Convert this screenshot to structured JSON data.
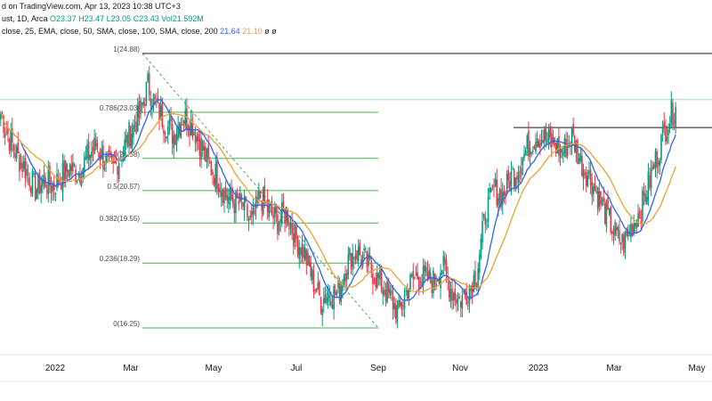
{
  "header": {
    "line1_prefix": "d on TradingView.com, Apr 13, 2023 10:38 UTC+3",
    "line2_symbol": "ust, 1D, Arca",
    "open": "O23.37",
    "high": "H23.47",
    "low": "L23.05",
    "close": "C23.43",
    "volume": "Vol21.592M",
    "line3_prefix": "close, 25, EMA, close, 50, SMA, close, 100, SMA, close, 200",
    "ma1_value": "21.64",
    "ma2_value": "21.10",
    "trailing": "ø ø"
  },
  "colors": {
    "up": "#089981",
    "down": "#f23645",
    "ma_fast": "#2962ff",
    "ma_slow": "#f0a030",
    "fib": "#4caf50",
    "trend": "#4caf50"
  },
  "chart_data": {
    "type": "candlestick",
    "x_labels": [
      "2022",
      "Mar",
      "May",
      "Jul",
      "Sep",
      "Nov",
      "2023",
      "Mar",
      "May"
    ],
    "fib_levels": [
      {
        "label": "1(24.88)",
        "value": 24.88
      },
      {
        "label": "0.786(23.03)",
        "value": 23.03
      },
      {
        "label": "0.618(21.58)",
        "value": 21.58
      },
      {
        "label": "0.5(20.57)",
        "value": 20.57
      },
      {
        "label": "0.382(19.55)",
        "value": 19.55
      },
      {
        "label": "0.236(18.29)",
        "value": 18.29
      },
      {
        "label": "0(16.25)",
        "value": 16.25
      }
    ],
    "resistance_levels": [
      24.88,
      22.55
    ],
    "current_level": 23.43,
    "close_prices": [
      23.0,
      22.2,
      21.6,
      21.2,
      20.6,
      20.9,
      20.7,
      21.0,
      21.3,
      21.1,
      21.6,
      22.0,
      21.5,
      21.2,
      21.8,
      22.4,
      22.9,
      23.9,
      23.2,
      22.7,
      22.3,
      22.9,
      22.7,
      22.1,
      21.4,
      21.0,
      20.4,
      20.2,
      20.1,
      19.5,
      20.4,
      19.9,
      19.6,
      19.9,
      19.1,
      18.7,
      17.8,
      17.1,
      17.4,
      17.3,
      18.3,
      18.7,
      18.4,
      18.0,
      17.6,
      17.2,
      16.7,
      17.5,
      17.9,
      17.8,
      17.7,
      18.2,
      17.5,
      17.1,
      17.4,
      18.0,
      19.8,
      20.6,
      20.4,
      21.0,
      21.4,
      22.0,
      22.3,
      22.2,
      22.0,
      21.8,
      22.3,
      21.5,
      21.0,
      20.4,
      19.8,
      19.2,
      18.9,
      19.5,
      20.0,
      20.9,
      21.8,
      22.7,
      23.2
    ]
  }
}
